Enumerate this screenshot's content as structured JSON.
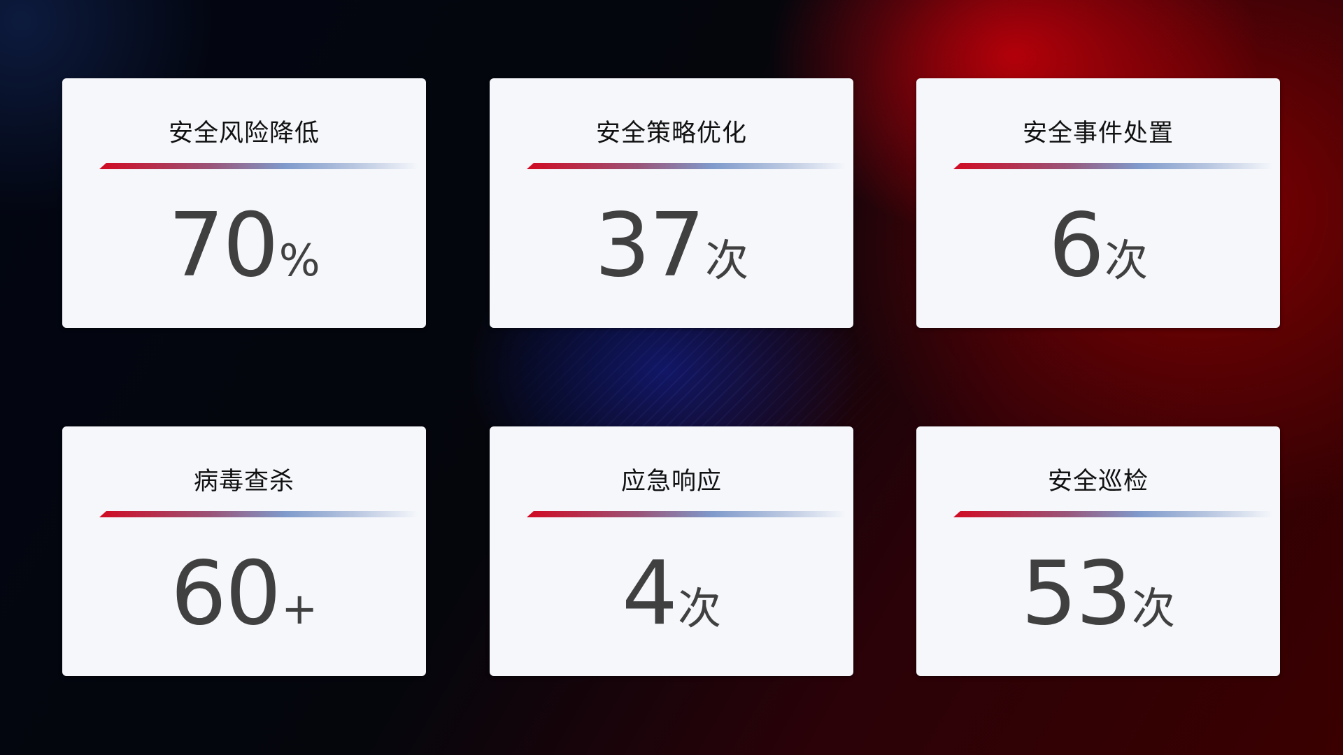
{
  "cards": [
    {
      "title": "安全风险降低",
      "value": "70",
      "unit": "%"
    },
    {
      "title": "安全策略优化",
      "value": "37",
      "unit": "次"
    },
    {
      "title": "安全事件处置",
      "value": "6",
      "unit": "次"
    },
    {
      "title": "病毒查杀",
      "value": "60",
      "unit": "+"
    },
    {
      "title": "应急响应",
      "value": "4",
      "unit": "次"
    },
    {
      "title": "安全巡检",
      "value": "53",
      "unit": "次"
    }
  ],
  "colors": {
    "accent_red": "#d10a22",
    "accent_blue": "#7f9acb",
    "card_bg": "#f5f7fb",
    "value_text": "#404040"
  }
}
